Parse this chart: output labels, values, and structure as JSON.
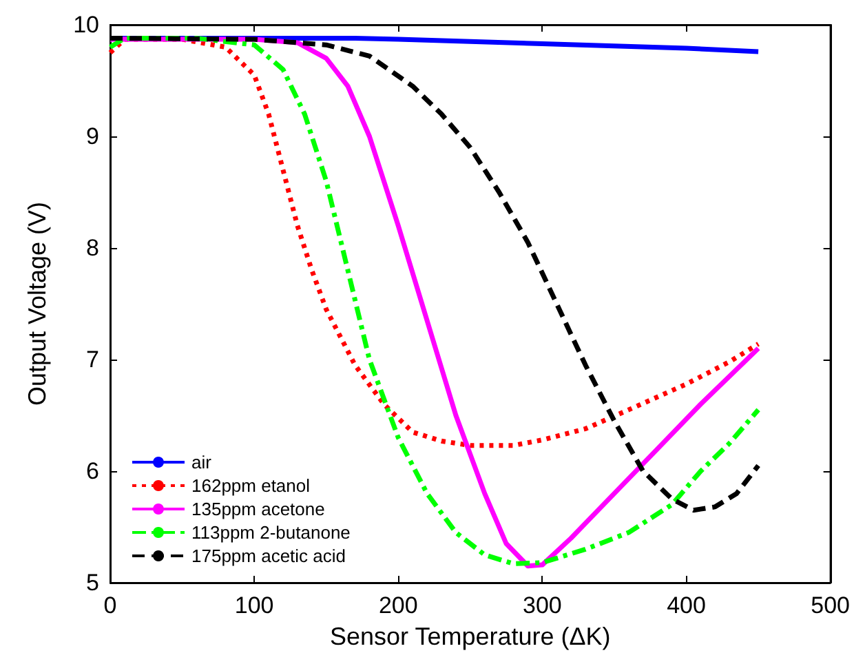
{
  "chart_data": {
    "type": "line",
    "xlabel": "Sensor Temperature (ΔK)",
    "ylabel": "Output Voltage (V)",
    "xlim": [
      0,
      500
    ],
    "xticks": [
      0,
      100,
      200,
      300,
      400,
      500
    ],
    "ylim": [
      5,
      10
    ],
    "yticks": [
      5,
      6,
      7,
      8,
      9,
      10
    ],
    "grid": false,
    "legend": "bottom left",
    "marker": "none",
    "series": [
      {
        "name": "air",
        "color": "#0000ff",
        "line_style": "solid",
        "x": [
          0,
          100,
          170,
          200,
          250,
          300,
          350,
          400,
          450
        ],
        "values": [
          9.88,
          9.88,
          9.88,
          9.87,
          9.85,
          9.83,
          9.81,
          9.79,
          9.76
        ]
      },
      {
        "name": "162ppm etanol",
        "color": "#ff0000",
        "line_style": "dotted",
        "x": [
          0,
          10,
          50,
          80,
          100,
          110,
          120,
          130,
          140,
          150,
          170,
          190,
          210,
          230,
          250,
          280,
          300,
          330,
          360,
          400,
          430,
          450
        ],
        "values": [
          9.75,
          9.87,
          9.87,
          9.8,
          9.55,
          9.2,
          8.7,
          8.2,
          7.8,
          7.45,
          6.95,
          6.6,
          6.35,
          6.27,
          6.23,
          6.23,
          6.28,
          6.38,
          6.55,
          6.78,
          6.98,
          7.14
        ]
      },
      {
        "name": "135ppm acetone",
        "color": "#ff00ff",
        "line_style": "solid",
        "x": [
          0,
          100,
          130,
          150,
          165,
          180,
          200,
          220,
          240,
          260,
          275,
          290,
          300,
          320,
          350,
          380,
          410,
          450
        ],
        "values": [
          9.87,
          9.87,
          9.84,
          9.7,
          9.45,
          9.0,
          8.2,
          7.35,
          6.5,
          5.8,
          5.35,
          5.15,
          5.16,
          5.4,
          5.8,
          6.2,
          6.6,
          7.1
        ]
      },
      {
        "name": "113ppm 2-butanone",
        "color": "#00ff00",
        "line_style": "dashdot",
        "x": [
          0,
          10,
          60,
          100,
          120,
          135,
          150,
          165,
          180,
          200,
          220,
          240,
          260,
          280,
          300,
          330,
          360,
          390,
          410,
          430,
          450
        ],
        "values": [
          9.8,
          9.88,
          9.88,
          9.82,
          9.6,
          9.2,
          8.6,
          7.8,
          7.0,
          6.3,
          5.8,
          5.45,
          5.25,
          5.17,
          5.18,
          5.3,
          5.45,
          5.7,
          6.0,
          6.25,
          6.55
        ]
      },
      {
        "name": "175ppm acetic acid",
        "color": "#000000",
        "line_style": "dashed",
        "x": [
          0,
          100,
          150,
          180,
          210,
          230,
          250,
          270,
          290,
          310,
          330,
          350,
          370,
          390,
          405,
          420,
          435,
          450
        ],
        "values": [
          9.88,
          9.87,
          9.82,
          9.72,
          9.45,
          9.2,
          8.9,
          8.5,
          8.05,
          7.5,
          6.95,
          6.45,
          6.0,
          5.75,
          5.65,
          5.68,
          5.8,
          6.05
        ]
      }
    ]
  }
}
